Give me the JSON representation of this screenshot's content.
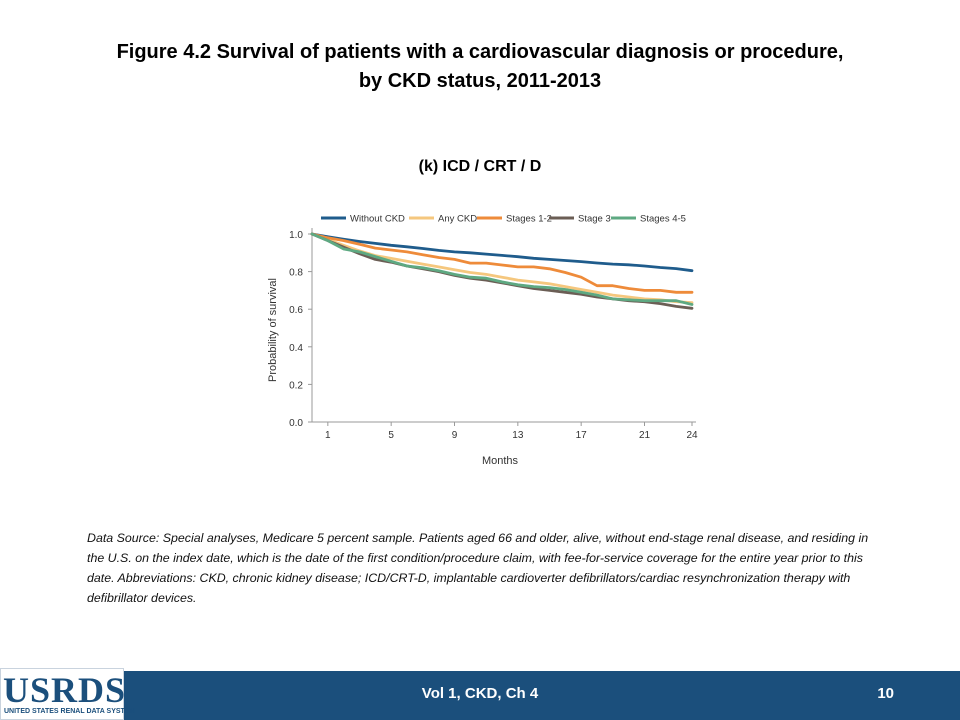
{
  "title": {
    "line1": "Figure 4.2  Survival of patients with a cardiovascular diagnosis or procedure,",
    "line2": "by CKD status, 2011-2013"
  },
  "subtitle": "(k) ICD / CRT / D",
  "chart_data": {
    "type": "line",
    "xlabel": "Months",
    "ylabel": "Probability of survival",
    "xlim": [
      0,
      24
    ],
    "ylim": [
      0,
      1.0
    ],
    "x_ticks": [
      1,
      5,
      9,
      13,
      17,
      21,
      24
    ],
    "y_ticks": [
      "0.0",
      "0.2",
      "0.4",
      "0.6",
      "0.8",
      "1.0"
    ],
    "legend_position": "top",
    "x": [
      0,
      1,
      2,
      3,
      4,
      5,
      6,
      7,
      8,
      9,
      10,
      11,
      12,
      13,
      14,
      15,
      16,
      17,
      18,
      19,
      20,
      21,
      22,
      23,
      24
    ],
    "series": [
      {
        "name": "Without CKD",
        "color": "#1f5c8c",
        "values": [
          1.0,
          0.985,
          0.972,
          0.96,
          0.95,
          0.94,
          0.932,
          0.923,
          0.913,
          0.905,
          0.9,
          0.893,
          0.886,
          0.879,
          0.871,
          0.865,
          0.859,
          0.853,
          0.846,
          0.84,
          0.836,
          0.83,
          0.822,
          0.816,
          0.805
        ]
      },
      {
        "name": "Any CKD",
        "color": "#f5c77e",
        "values": [
          1.0,
          0.97,
          0.94,
          0.91,
          0.885,
          0.87,
          0.855,
          0.84,
          0.825,
          0.81,
          0.795,
          0.785,
          0.77,
          0.755,
          0.745,
          0.735,
          0.72,
          0.705,
          0.69,
          0.675,
          0.665,
          0.655,
          0.65,
          0.64,
          0.635
        ]
      },
      {
        "name": "Stages 1-2",
        "color": "#ee8b3a",
        "values": [
          1.0,
          0.98,
          0.965,
          0.945,
          0.925,
          0.915,
          0.905,
          0.89,
          0.875,
          0.865,
          0.845,
          0.845,
          0.835,
          0.825,
          0.825,
          0.815,
          0.795,
          0.77,
          0.725,
          0.725,
          0.71,
          0.7,
          0.7,
          0.69,
          0.69
        ]
      },
      {
        "name": "Stage 3",
        "color": "#6b5e55",
        "values": [
          1.0,
          0.965,
          0.93,
          0.895,
          0.865,
          0.85,
          0.83,
          0.815,
          0.8,
          0.78,
          0.765,
          0.755,
          0.74,
          0.725,
          0.71,
          0.7,
          0.69,
          0.68,
          0.665,
          0.655,
          0.645,
          0.64,
          0.63,
          0.615,
          0.605
        ]
      },
      {
        "name": "Stages 4-5",
        "color": "#5ea982",
        "values": [
          1.0,
          0.965,
          0.92,
          0.905,
          0.88,
          0.855,
          0.83,
          0.82,
          0.805,
          0.785,
          0.77,
          0.765,
          0.745,
          0.73,
          0.72,
          0.715,
          0.705,
          0.69,
          0.675,
          0.655,
          0.65,
          0.645,
          0.645,
          0.645,
          0.625
        ]
      }
    ]
  },
  "note": "Data Source: Special analyses, Medicare 5 percent sample. Patients aged 66 and older, alive, without end-stage renal disease, and residing in the U.S. on the index date, which is the date of the first condition/procedure claim, with fee-for-service coverage for the entire year prior to this date. Abbreviations: CKD, chronic kidney disease; ICD/CRT-D, implantable cardioverter defibrillators/cardiac resynchronization therapy with defibrillator devices.",
  "footer": {
    "label": "Vol 1, CKD, Ch 4",
    "page": "10"
  },
  "logo": {
    "text": "USRDS",
    "tagline": "UNITED STATES RENAL DATA SYSTEM"
  }
}
